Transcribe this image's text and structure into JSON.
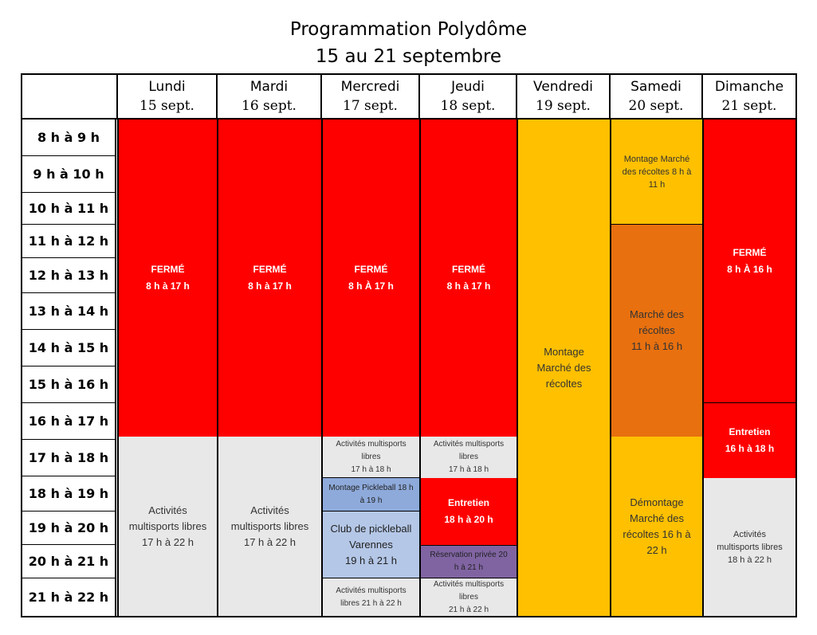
{
  "title_line1": "Programmation Polydôme",
  "title_line2": "15 au 21 septembre",
  "days": [
    {
      "name": "Lundi",
      "date": "15 sept."
    },
    {
      "name": "Mardi",
      "date": "16 sept."
    },
    {
      "name": "Mercredi",
      "date": "17 sept."
    },
    {
      "name": "Jeudi",
      "date": "18 sept."
    },
    {
      "name": "Vendredi",
      "date": "19 sept."
    },
    {
      "name": "Samedi",
      "date": "20 sept."
    },
    {
      "name": "Dimanche",
      "date": "21 sept."
    }
  ],
  "times": [
    "8 h à 9 h",
    "9 h à 10 h",
    "10 h à 11 h",
    "11 h à 12 h",
    "12 h à 13 h",
    "13 h à 14 h",
    "14 h à 15 h",
    "15 h à 16 h",
    "16 h à 17 h",
    "17 h à 18 h",
    "18 h à 19 h",
    "19 h à 20 h",
    "20 h à 21 h",
    "21 h à 22 h"
  ],
  "blocks": {
    "lundi_ferme": [
      "FERMÉ",
      "8 h à 17 h"
    ],
    "lundi_activites": [
      "Activités",
      "multisports libres",
      "17 h à 22  h"
    ],
    "mardi_ferme": [
      "FERMÉ",
      "8 h à 17 h"
    ],
    "mardi_activites": [
      "Activités",
      "multisports libres",
      "17 h à 22  h"
    ],
    "mercredi_ferme": [
      "FERMÉ",
      "8 h À 17 h"
    ],
    "mercredi_activites1": [
      "Activités multisports",
      "libres",
      "17 h  à 18 h"
    ],
    "mercredi_montage": [
      "Montage Pickleball 18 h",
      "à 19 h"
    ],
    "mercredi_club": [
      "Club de pickleball",
      "Varennes",
      "19 h à 21 h"
    ],
    "mercredi_activites2": [
      "Activités multisports",
      "libres 21 h à 22 h"
    ],
    "jeudi_ferme": [
      "FERMÉ",
      "8 h à 17 h"
    ],
    "jeudi_activites1": [
      "Activités multisports",
      "libres",
      "17 h  à 18 h"
    ],
    "jeudi_entretien": [
      "Entretien",
      "18 h à 20 h"
    ],
    "jeudi_reservation": [
      "Réservation privée 20",
      "h à 21 h"
    ],
    "jeudi_activites2": [
      "Activités multisports",
      "libres",
      "21 h  à 22 h"
    ],
    "vendredi_montage": [
      "Montage",
      "Marché des",
      "récoltes"
    ],
    "samedi_montage": [
      "Montage Marché",
      "des récoltes 8 h à",
      "11 h"
    ],
    "samedi_marche": [
      "Marché des",
      "récoltes",
      "11 h à 16 h"
    ],
    "samedi_demontage": [
      "Démontage",
      "Marché des",
      "récoltes 16 h à",
      "22 h"
    ],
    "dimanche_ferme": [
      "FERMÉ",
      "8 h À 16 h"
    ],
    "dimanche_entretien": [
      "Entretien",
      "16 h à 18 h"
    ],
    "dimanche_activites": [
      "Activités",
      "multisports libres",
      "18 h à 22 h"
    ]
  },
  "colors": {
    "closed": "#ff0000",
    "free_activities": "#e8e8e8",
    "market_setup": "#ffc000",
    "market": "#e8700f",
    "pickleball_setup": "#8eaadb",
    "pickleball_club": "#b4c7e7",
    "private_booking": "#8064a2"
  }
}
